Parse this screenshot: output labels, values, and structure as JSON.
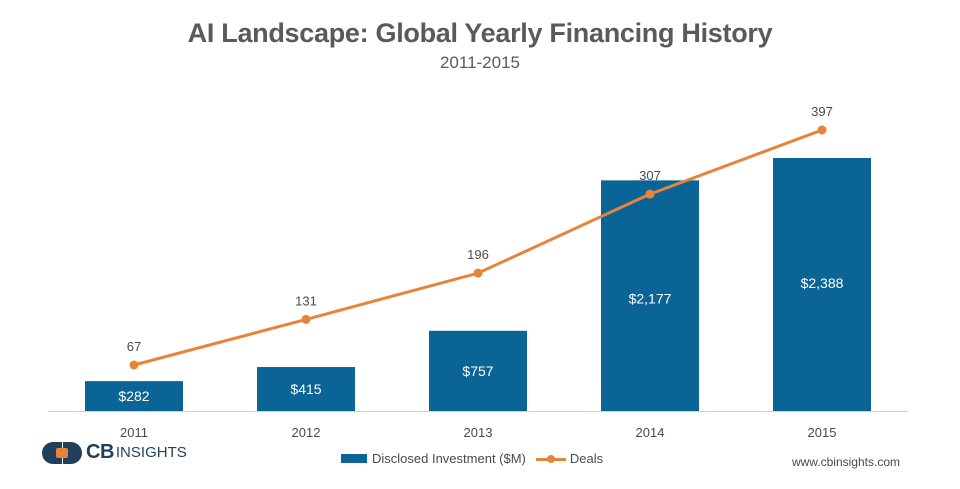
{
  "chart_data": {
    "type": "bar",
    "title": "AI Landscape: Global Yearly Financing History",
    "subtitle": "2011-2015",
    "categories": [
      "2011",
      "2012",
      "2013",
      "2014",
      "2015"
    ],
    "series": [
      {
        "name": "Disclosed Investment ($M)",
        "kind": "bar",
        "values": [
          282,
          415,
          757,
          2177,
          2388
        ],
        "labels": [
          "$282",
          "$415",
          "$757",
          "$2,177",
          "$2,388"
        ],
        "color": "#0b6496"
      },
      {
        "name": "Deals",
        "kind": "line",
        "values": [
          67,
          131,
          196,
          307,
          397
        ],
        "labels": [
          "67",
          "131",
          "196",
          "307",
          "397"
        ],
        "color": "#e8843a"
      }
    ],
    "bar_ylim": [
      0,
      2400
    ],
    "line_ylim": [
      0,
      420
    ],
    "legend_position": "bottom-center",
    "grid": false
  },
  "branding": {
    "logo_cb": "CB",
    "logo_insights": "INSIGHTS",
    "url": "www.cbinsights.com"
  }
}
